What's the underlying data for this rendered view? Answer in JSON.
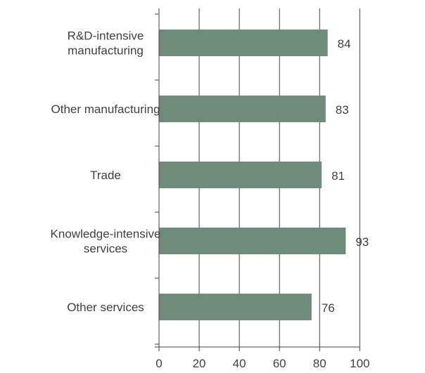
{
  "chart_data": {
    "type": "bar",
    "orientation": "horizontal",
    "categories": [
      "R&D-intensive manufacturing",
      "Other manufacturing",
      "Trade",
      "Knowledge-intensive services",
      "Other services"
    ],
    "category_label_lines": [
      [
        "R&D-intensive",
        "manufacturing"
      ],
      [
        "Other manufacturing"
      ],
      [
        "Trade"
      ],
      [
        "Knowledge-intensive",
        "services"
      ],
      [
        "Other services"
      ]
    ],
    "values": [
      84,
      83,
      81,
      93,
      76
    ],
    "value_labels": [
      "84",
      "83",
      "81",
      "93",
      "76"
    ],
    "xlim": [
      0,
      100
    ],
    "xticks": [
      0,
      20,
      40,
      60,
      80,
      100
    ],
    "grid": true,
    "bar_color": "#6e8b7b",
    "grid_color": "#404040",
    "title": "",
    "xlabel": "",
    "ylabel": ""
  }
}
